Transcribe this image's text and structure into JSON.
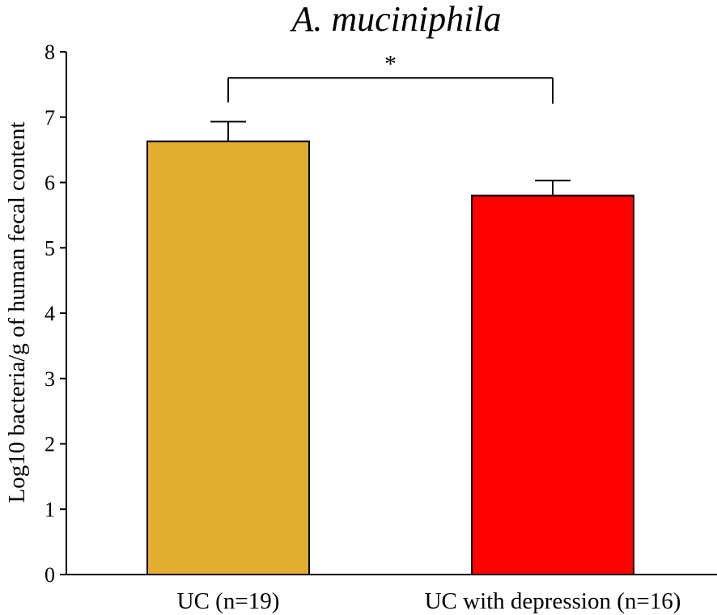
{
  "chart_data": {
    "type": "bar",
    "title": "A. muciniphila",
    "xlabel": "",
    "ylabel": "Log10 bacteria/g of human fecal content",
    "ylim": [
      0,
      8
    ],
    "yticks": [
      "0",
      "1",
      "2",
      "3",
      "4",
      "5",
      "6",
      "7",
      "8"
    ],
    "categories": [
      "UC (n=19)",
      "UC with depression (n=16)"
    ],
    "values": [
      6.63,
      5.8
    ],
    "errors": [
      0.3,
      0.23
    ],
    "colors": [
      "#e3ad32",
      "#ff0000"
    ],
    "significance": {
      "between": [
        0,
        1
      ],
      "label": "*",
      "level": 7.6
    },
    "grid": false
  }
}
